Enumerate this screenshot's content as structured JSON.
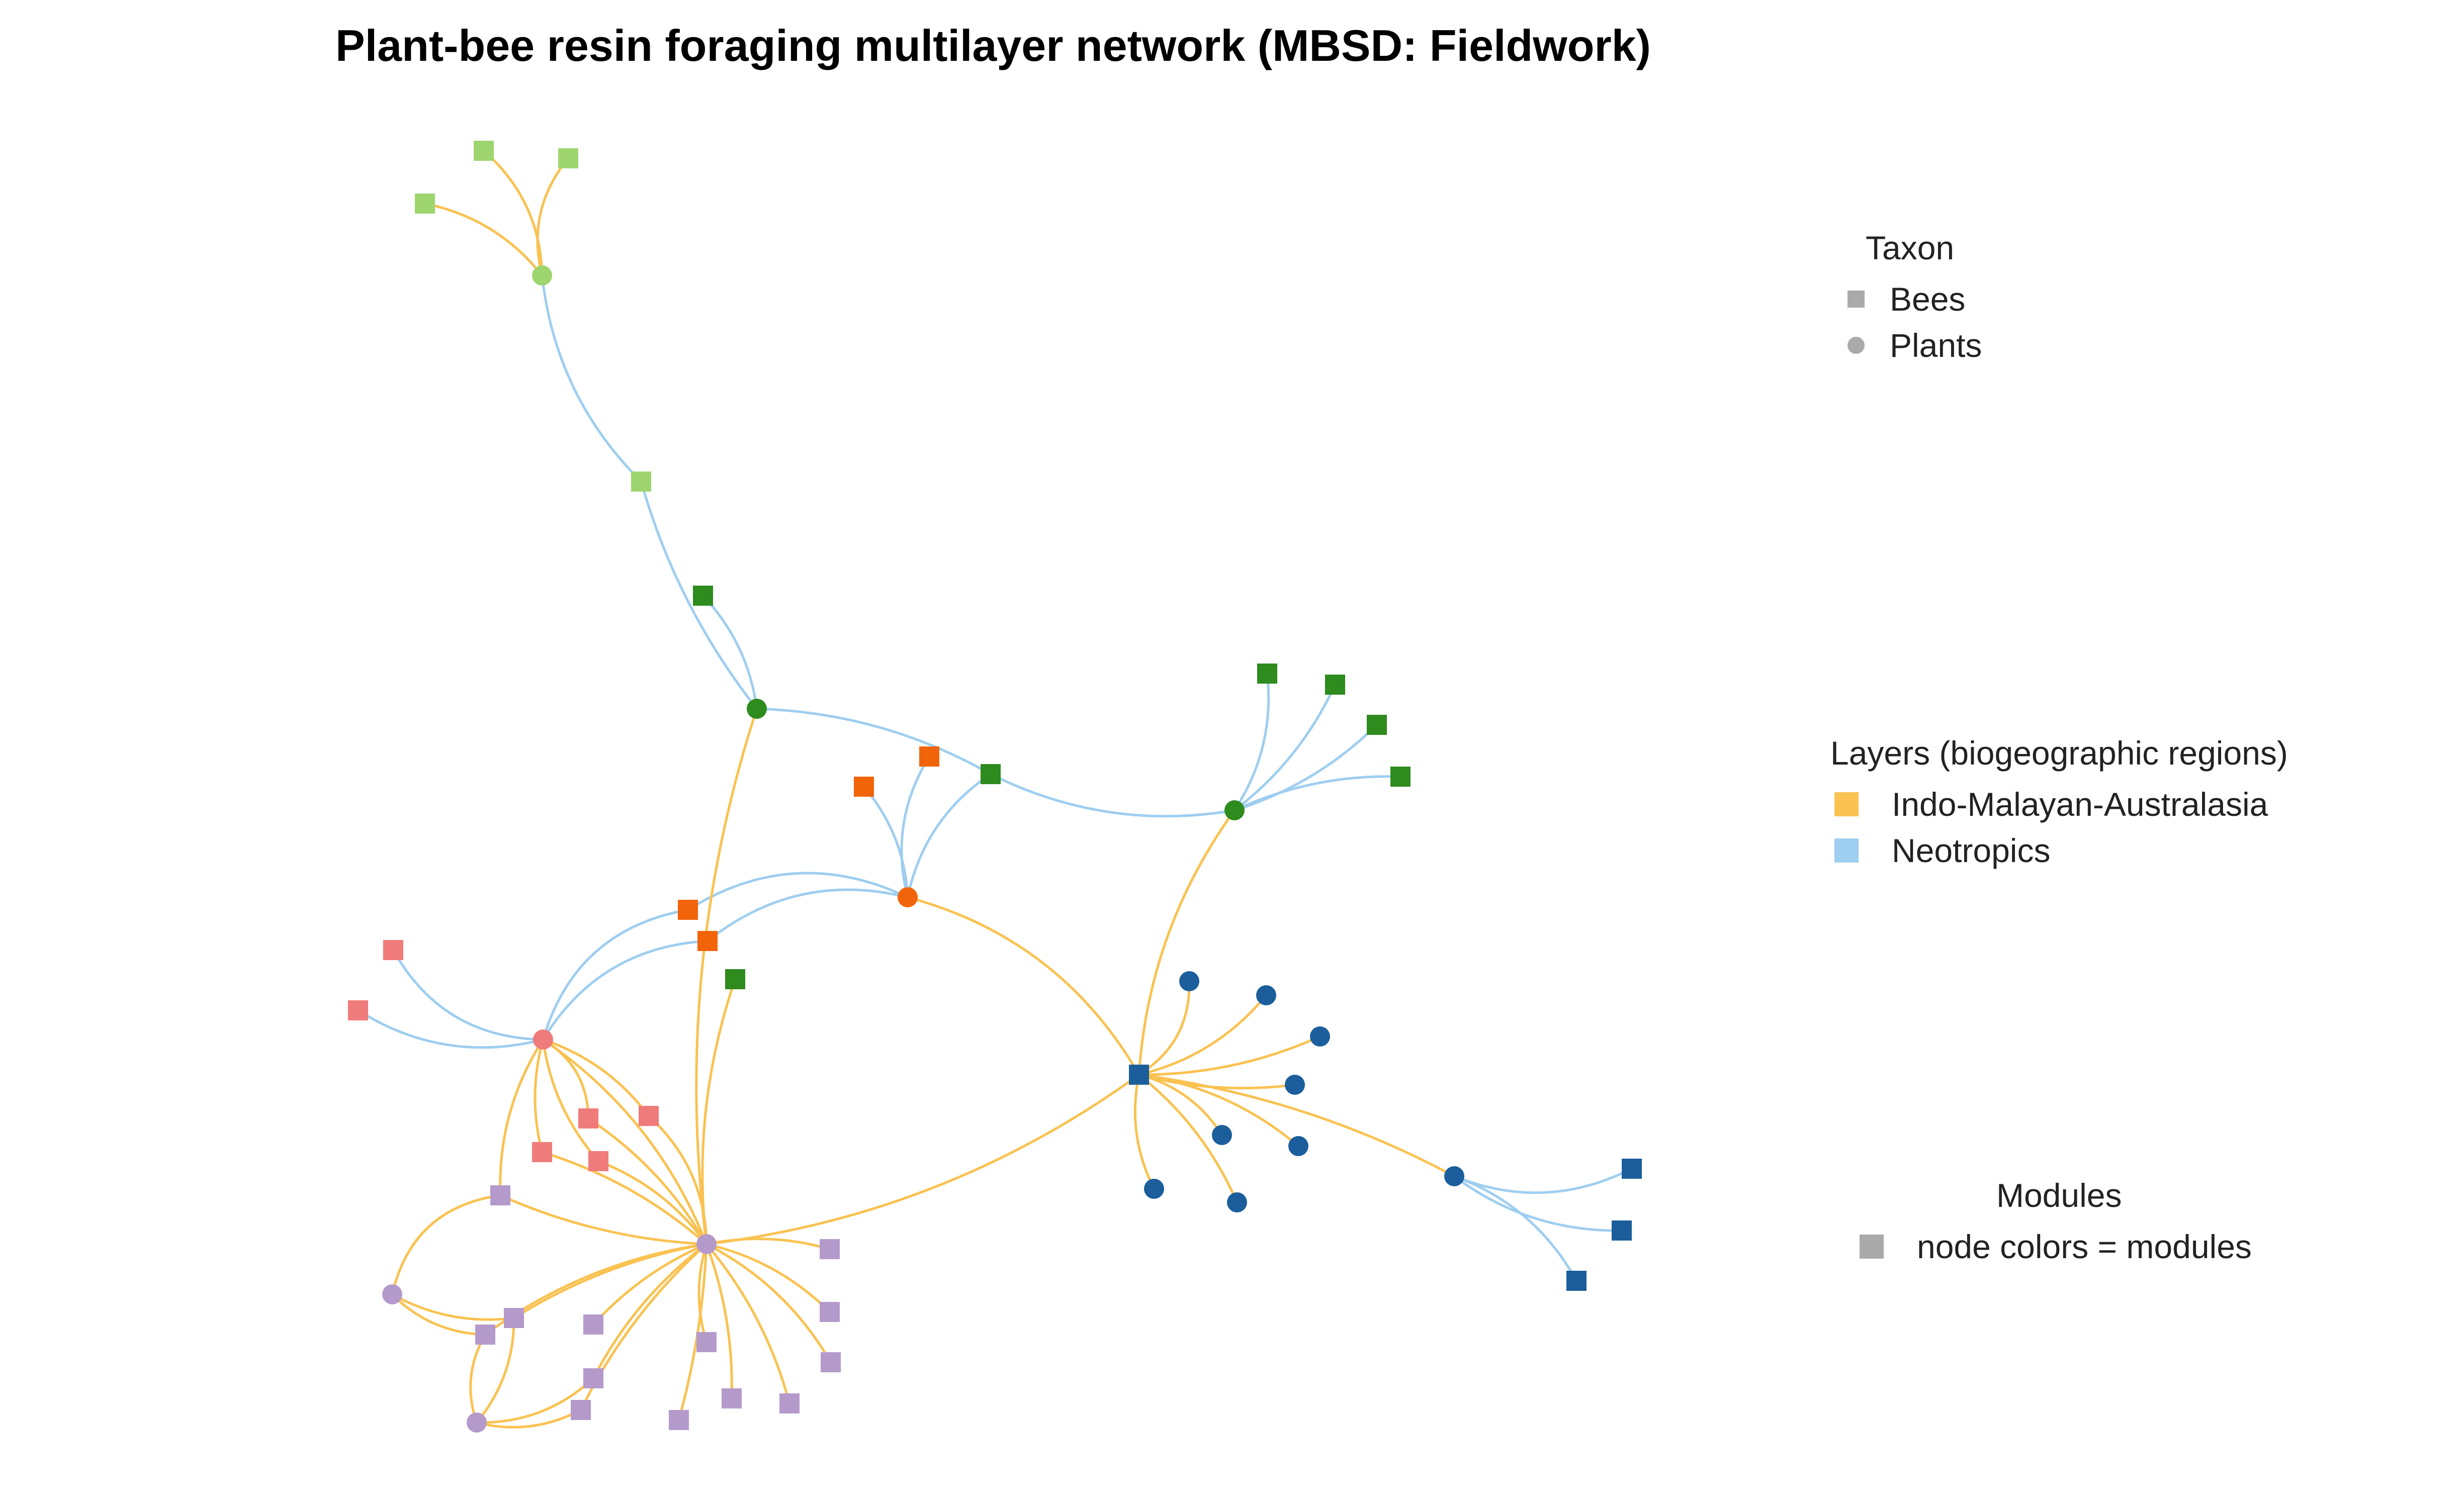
{
  "title": "Plant-bee resin foraging multilayer network (MBSD: Fieldwork)",
  "legend_taxon": {
    "title": "Taxon",
    "items": [
      {
        "label": "Bees",
        "shape": "square",
        "color": "#aaaaaa"
      },
      {
        "label": "Plants",
        "shape": "circle",
        "color": "#aaaaaa"
      }
    ]
  },
  "legend_layers": {
    "title": "Layers (biogeographic regions)",
    "items": [
      {
        "label": "Indo-Malayan-Australasia",
        "color": "#F9C251"
      },
      {
        "label": "Neotropics",
        "color": "#9ECEF0"
      }
    ]
  },
  "legend_modules": {
    "title": "Modules",
    "items": [
      {
        "label": "node colors = modules",
        "color": "#aaaaaa"
      }
    ]
  },
  "modules": {
    "lightgreen": "#9ED56F",
    "green": "#2E8B1E",
    "orange": "#F2640A",
    "pink": "#F07B7B",
    "purple": "#B49ACB",
    "blue": "#1B5E9B"
  },
  "layer_colors": {
    "indo": "#F9C251",
    "neo": "#9ECEF0"
  }
}
